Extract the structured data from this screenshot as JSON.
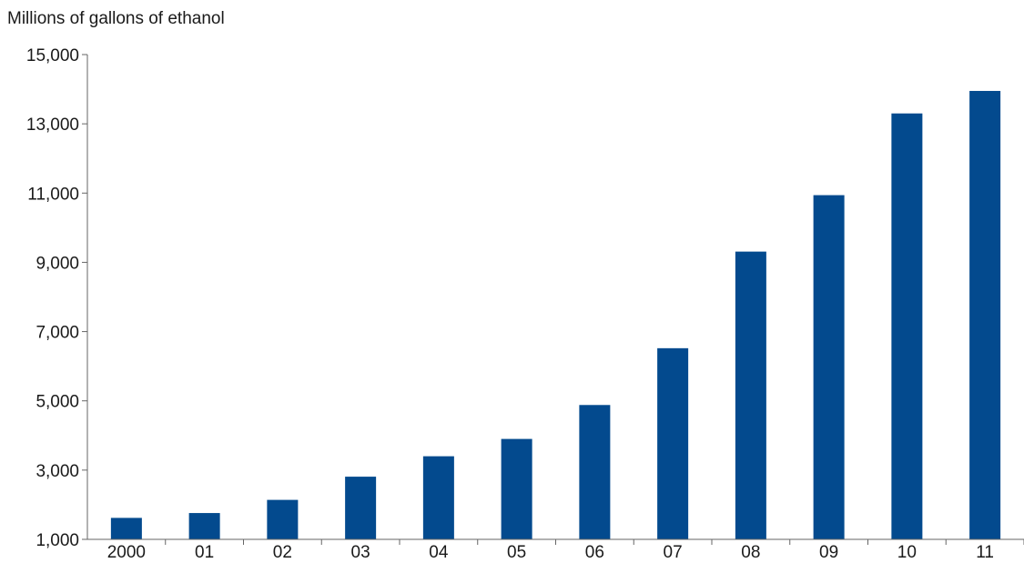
{
  "chart_data": {
    "type": "bar",
    "title": "Millions of gallons of ethanol",
    "xlabel": "",
    "ylabel": "",
    "categories": [
      "2000",
      "01",
      "02",
      "03",
      "04",
      "05",
      "06",
      "07",
      "08",
      "09",
      "10",
      "11"
    ],
    "values": [
      1620,
      1760,
      2140,
      2810,
      3400,
      3900,
      4880,
      6520,
      9310,
      10940,
      13300,
      13950
    ],
    "ylim": [
      1000,
      15000
    ],
    "yticks": [
      "1,000",
      "3,000",
      "5,000",
      "7,000",
      "9,000",
      "11,000",
      "13,000",
      "15,000"
    ],
    "ytick_values": [
      1000,
      3000,
      5000,
      7000,
      9000,
      11000,
      13000,
      15000
    ],
    "bar_color": "#034a8e",
    "grid": false,
    "legend": "none"
  }
}
